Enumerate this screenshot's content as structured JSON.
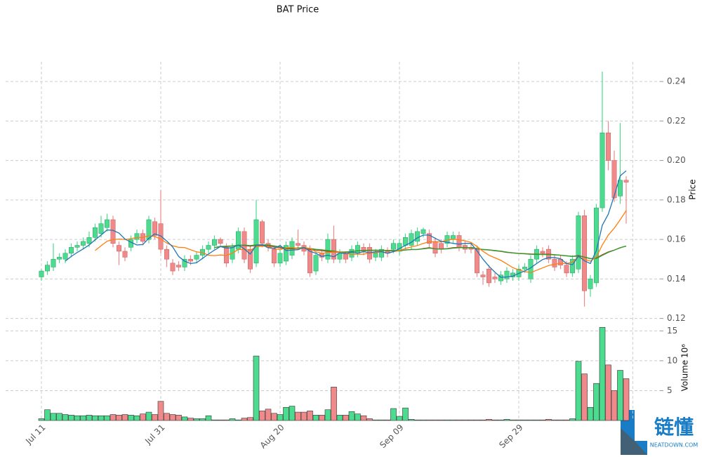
{
  "chart_data": {
    "type": "candlestick",
    "title": "BAT Price",
    "price_label": "Price",
    "volume_label": "Volume",
    "volume_scale": "10⁶",
    "categories": [
      "Jul 11",
      null,
      null,
      null,
      null,
      null,
      null,
      null,
      null,
      null,
      null,
      null,
      null,
      null,
      null,
      null,
      null,
      null,
      null,
      null,
      "Jul 31",
      null,
      null,
      null,
      null,
      null,
      null,
      null,
      null,
      null,
      null,
      null,
      null,
      null,
      null,
      null,
      null,
      null,
      null,
      null,
      "Aug 20",
      null,
      null,
      null,
      null,
      null,
      null,
      null,
      null,
      null,
      null,
      null,
      null,
      null,
      null,
      null,
      null,
      null,
      null,
      null,
      "Sep 09",
      null,
      null,
      null,
      null,
      null,
      null,
      null,
      null,
      null,
      null,
      null,
      null,
      null,
      null,
      null,
      null,
      null,
      null,
      null,
      "Sep 29",
      null,
      null,
      null,
      null,
      null,
      null,
      null,
      null,
      null,
      null,
      null,
      null,
      null,
      null,
      null,
      null,
      null,
      null
    ],
    "open": [
      0.141,
      0.144,
      0.146,
      0.15,
      0.15,
      0.153,
      0.156,
      0.157,
      0.158,
      0.161,
      0.163,
      0.166,
      0.17,
      0.157,
      0.154,
      0.156,
      0.16,
      0.163,
      0.16,
      0.169,
      0.168,
      0.155,
      0.148,
      0.147,
      0.146,
      0.15,
      0.15,
      0.152,
      0.155,
      0.157,
      0.16,
      0.156,
      0.15,
      0.155,
      0.164,
      0.155,
      0.148,
      0.169,
      0.158,
      0.155,
      0.148,
      0.149,
      0.152,
      0.158,
      0.157,
      0.155,
      0.144,
      0.153,
      0.15,
      0.16,
      0.15,
      0.153,
      0.151,
      0.153,
      0.156,
      0.156,
      0.151,
      0.151,
      0.154,
      0.155,
      0.154,
      0.157,
      0.157,
      0.159,
      0.163,
      0.163,
      0.159,
      0.158,
      0.158,
      0.16,
      0.162,
      0.157,
      0.156,
      0.155,
      0.142,
      0.145,
      0.141,
      0.139,
      0.14,
      0.141,
      0.141,
      0.145,
      0.14,
      0.15,
      0.154,
      0.155,
      0.15,
      0.15,
      0.147,
      0.143,
      0.145,
      0.172,
      0.135,
      0.138,
      0.176,
      0.214,
      0.2,
      0.182,
      0.19
    ],
    "high": [
      0.145,
      0.149,
      0.158,
      0.153,
      0.155,
      0.158,
      0.159,
      0.161,
      0.164,
      0.168,
      0.172,
      0.173,
      0.172,
      0.159,
      0.156,
      0.162,
      0.165,
      0.165,
      0.172,
      0.171,
      0.185,
      0.157,
      0.15,
      0.149,
      0.152,
      0.152,
      0.154,
      0.157,
      0.159,
      0.162,
      0.161,
      0.158,
      0.158,
      0.166,
      0.166,
      0.157,
      0.18,
      0.17,
      0.16,
      0.157,
      0.155,
      0.159,
      0.161,
      0.165,
      0.159,
      0.157,
      0.154,
      0.155,
      0.163,
      0.167,
      0.155,
      0.154,
      0.157,
      0.159,
      0.158,
      0.158,
      0.155,
      0.157,
      0.156,
      0.16,
      0.16,
      0.163,
      0.165,
      0.166,
      0.166,
      0.165,
      0.161,
      0.16,
      0.164,
      0.164,
      0.164,
      0.159,
      0.158,
      0.157,
      0.144,
      0.147,
      0.143,
      0.144,
      0.146,
      0.145,
      0.147,
      0.148,
      0.152,
      0.157,
      0.156,
      0.157,
      0.152,
      0.152,
      0.149,
      0.152,
      0.174,
      0.175,
      0.142,
      0.178,
      0.245,
      0.22,
      0.205,
      0.219,
      0.192
    ],
    "low": [
      0.139,
      0.142,
      0.144,
      0.148,
      0.148,
      0.151,
      0.154,
      0.155,
      0.156,
      0.159,
      0.161,
      0.164,
      0.156,
      0.147,
      0.149,
      0.154,
      0.158,
      0.157,
      0.158,
      0.16,
      0.153,
      0.146,
      0.142,
      0.144,
      0.144,
      0.147,
      0.148,
      0.15,
      0.153,
      0.155,
      0.156,
      0.146,
      0.148,
      0.153,
      0.148,
      0.143,
      0.146,
      0.156,
      0.154,
      0.146,
      0.146,
      0.147,
      0.15,
      0.155,
      0.152,
      0.141,
      0.142,
      0.149,
      0.148,
      0.148,
      0.148,
      0.148,
      0.149,
      0.151,
      0.152,
      0.148,
      0.149,
      0.149,
      0.151,
      0.153,
      0.152,
      0.155,
      0.155,
      0.157,
      0.161,
      0.156,
      0.151,
      0.153,
      0.156,
      0.158,
      0.154,
      0.153,
      0.153,
      0.141,
      0.137,
      0.136,
      0.138,
      0.137,
      0.138,
      0.139,
      0.139,
      0.143,
      0.138,
      0.148,
      0.151,
      0.148,
      0.144,
      0.145,
      0.141,
      0.141,
      0.143,
      0.126,
      0.131,
      0.136,
      0.174,
      0.195,
      0.179,
      0.178,
      0.168
    ],
    "close": [
      0.144,
      0.147,
      0.15,
      0.151,
      0.153,
      0.156,
      0.157,
      0.159,
      0.161,
      0.166,
      0.168,
      0.17,
      0.158,
      0.154,
      0.151,
      0.16,
      0.163,
      0.159,
      0.17,
      0.162,
      0.155,
      0.15,
      0.144,
      0.146,
      0.15,
      0.149,
      0.152,
      0.155,
      0.157,
      0.16,
      0.158,
      0.148,
      0.156,
      0.164,
      0.15,
      0.145,
      0.17,
      0.158,
      0.156,
      0.148,
      0.153,
      0.157,
      0.159,
      0.157,
      0.154,
      0.143,
      0.152,
      0.151,
      0.16,
      0.15,
      0.153,
      0.15,
      0.155,
      0.157,
      0.154,
      0.15,
      0.153,
      0.155,
      0.153,
      0.158,
      0.158,
      0.161,
      0.163,
      0.164,
      0.165,
      0.158,
      0.153,
      0.155,
      0.162,
      0.162,
      0.156,
      0.155,
      0.155,
      0.143,
      0.141,
      0.138,
      0.14,
      0.142,
      0.144,
      0.143,
      0.145,
      0.146,
      0.15,
      0.155,
      0.153,
      0.15,
      0.146,
      0.147,
      0.143,
      0.15,
      0.172,
      0.134,
      0.14,
      0.176,
      0.214,
      0.2,
      0.181,
      0.19,
      0.189
    ],
    "volume": [
      0.3,
      1.8,
      1.2,
      1.2,
      1.0,
      0.9,
      0.8,
      0.8,
      0.9,
      0.8,
      0.8,
      0.8,
      1.0,
      0.9,
      1.0,
      0.9,
      0.8,
      1.1,
      1.4,
      1.0,
      3.2,
      1.2,
      1.0,
      0.9,
      0.6,
      0.4,
      0.3,
      0.3,
      0.8,
      0.1,
      0.1,
      0.1,
      0.3,
      0.1,
      0.4,
      0.5,
      10.8,
      1.6,
      1.9,
      1.2,
      1.0,
      2.2,
      2.4,
      1.4,
      1.4,
      1.6,
      0.9,
      0.9,
      1.8,
      5.6,
      0.9,
      0.9,
      1.5,
      1.1,
      0.8,
      0.3,
      0.1,
      0.1,
      0.1,
      2.0,
      0.7,
      2.1,
      0.2,
      0.1,
      0.1,
      0.1,
      0.1,
      0.1,
      0.1,
      0.1,
      0.1,
      0.1,
      0.1,
      0.1,
      0.1,
      0.2,
      0.1,
      0.1,
      0.2,
      0.1,
      0.1,
      0.1,
      0.1,
      0.1,
      0.1,
      0.2,
      0.1,
      0.1,
      0.1,
      0.3,
      9.9,
      7.8,
      2.2,
      6.2,
      15.6,
      9.3,
      5.0,
      8.4,
      7.0
    ],
    "up_color": "#4cdc8f",
    "down_color": "#f08a8a",
    "ylim": [
      0.117,
      0.25
    ],
    "yticks": [
      0.12,
      0.14,
      0.16,
      0.18,
      {
        "value": 0.2,
        "label": "0.20"
      },
      0.22,
      0.24
    ],
    "y2lim": [
      0,
      16.1
    ],
    "y2ticks": [
      5,
      10,
      15
    ],
    "grid": true
  },
  "watermark": {
    "text": "链懂",
    "sub": "NEATDOWN.COM"
  }
}
